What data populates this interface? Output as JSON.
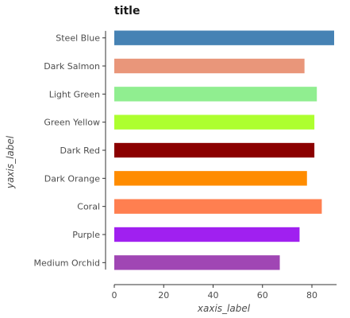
{
  "chart_data": {
    "type": "bar",
    "orientation": "horizontal",
    "title": "title",
    "xlabel": "xaxis_label",
    "ylabel": "yaxis_label",
    "xlim": [
      0,
      90
    ],
    "x_ticks": [
      0,
      20,
      40,
      60,
      80
    ],
    "grid": false,
    "categories": [
      "Medium Orchid",
      "Purple",
      "Coral",
      "Dark Orange",
      "Dark Red",
      "Green Yellow",
      "Light Green",
      "Dark Salmon",
      "Steel Blue"
    ],
    "values": [
      67,
      75,
      84,
      78,
      81,
      81,
      82,
      77,
      89
    ],
    "colors": [
      "#a046b4",
      "#a020f0",
      "#ff7f50",
      "#ff8c00",
      "#8b0000",
      "#adff2f",
      "#90ee90",
      "#e9967a",
      "#4682b4"
    ]
  }
}
